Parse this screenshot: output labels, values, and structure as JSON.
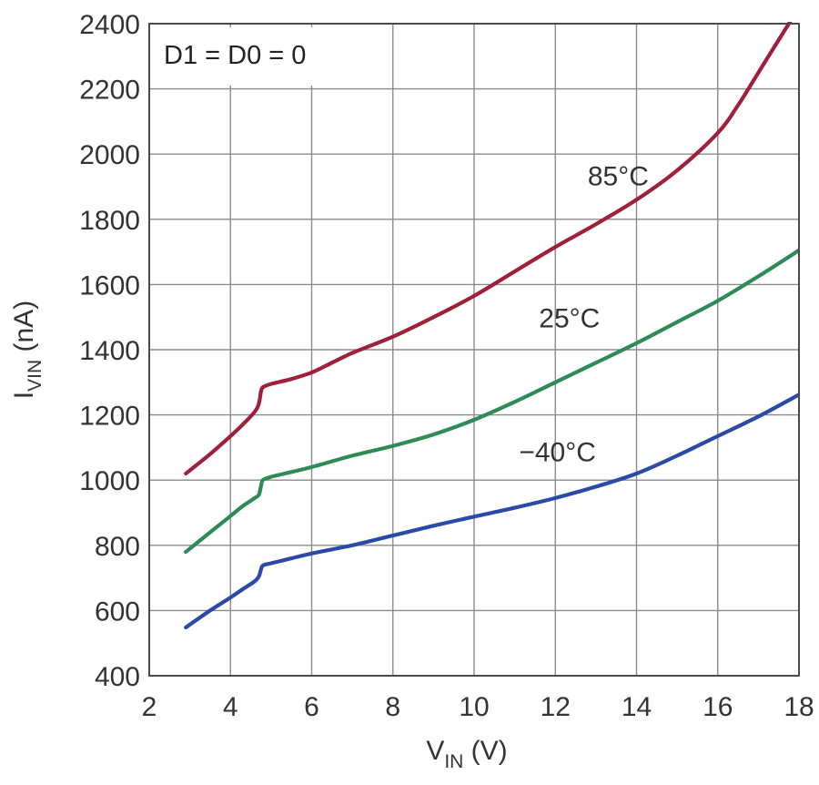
{
  "chart_data": {
    "type": "line",
    "annotation": "D1 = D0 = 0",
    "xlabel": {
      "main": "V",
      "sub": "IN",
      "suffix": " (V)"
    },
    "ylabel": {
      "main": "I",
      "sub": "VIN",
      "suffix": " (nA)"
    },
    "xlim": [
      2,
      18
    ],
    "ylim": [
      400,
      2400
    ],
    "x_ticks": [
      2,
      4,
      6,
      8,
      10,
      12,
      14,
      16,
      18
    ],
    "y_ticks": [
      400,
      600,
      800,
      1000,
      1200,
      1400,
      1600,
      1800,
      2000,
      2200,
      2400
    ],
    "x_tick_labels": [
      "2",
      "4",
      "6",
      "8",
      "10",
      "12",
      "14",
      "16",
      "18"
    ],
    "y_tick_labels": [
      "400",
      "600",
      "800",
      "1000",
      "1200",
      "1400",
      "1600",
      "1800",
      "2000",
      "2200",
      "2400"
    ],
    "grid": true,
    "series": [
      {
        "name": "85°C",
        "color": "#a0203a",
        "x": [
          2.9,
          3.5,
          4.0,
          4.3,
          4.6,
          4.7,
          4.75,
          4.8,
          5.0,
          5.5,
          6.0,
          6.5,
          7.0,
          8.0,
          9.0,
          10.0,
          11.0,
          12.0,
          13.0,
          14.0,
          15.0,
          16.0,
          16.5,
          17.0,
          17.5,
          17.8
        ],
        "values": [
          1020,
          1080,
          1135,
          1170,
          1210,
          1235,
          1270,
          1285,
          1295,
          1310,
          1330,
          1360,
          1390,
          1440,
          1500,
          1565,
          1640,
          1715,
          1785,
          1860,
          1950,
          2065,
          2150,
          2250,
          2350,
          2410
        ]
      },
      {
        "name": "25°C",
        "color": "#2e8b57",
        "x": [
          2.9,
          3.5,
          4.0,
          4.3,
          4.6,
          4.7,
          4.75,
          4.8,
          5.0,
          5.5,
          6.0,
          7.0,
          8.0,
          9.0,
          10.0,
          11.0,
          12.0,
          13.0,
          14.0,
          15.0,
          16.0,
          17.0,
          18.0
        ],
        "values": [
          780,
          840,
          890,
          920,
          945,
          955,
          980,
          1000,
          1010,
          1025,
          1040,
          1075,
          1105,
          1140,
          1185,
          1240,
          1300,
          1360,
          1420,
          1485,
          1550,
          1625,
          1705
        ]
      },
      {
        "name": "−40°C",
        "color": "#2b4aa8",
        "x": [
          2.9,
          3.5,
          4.0,
          4.3,
          4.6,
          4.7,
          4.75,
          4.8,
          5.0,
          5.5,
          6.0,
          7.0,
          8.0,
          9.0,
          10.0,
          11.0,
          12.0,
          13.0,
          14.0,
          15.0,
          16.0,
          17.0,
          18.0
        ],
        "values": [
          548,
          600,
          640,
          665,
          690,
          705,
          725,
          738,
          745,
          760,
          775,
          800,
          830,
          860,
          888,
          915,
          945,
          980,
          1020,
          1075,
          1135,
          1195,
          1262
        ]
      }
    ]
  }
}
